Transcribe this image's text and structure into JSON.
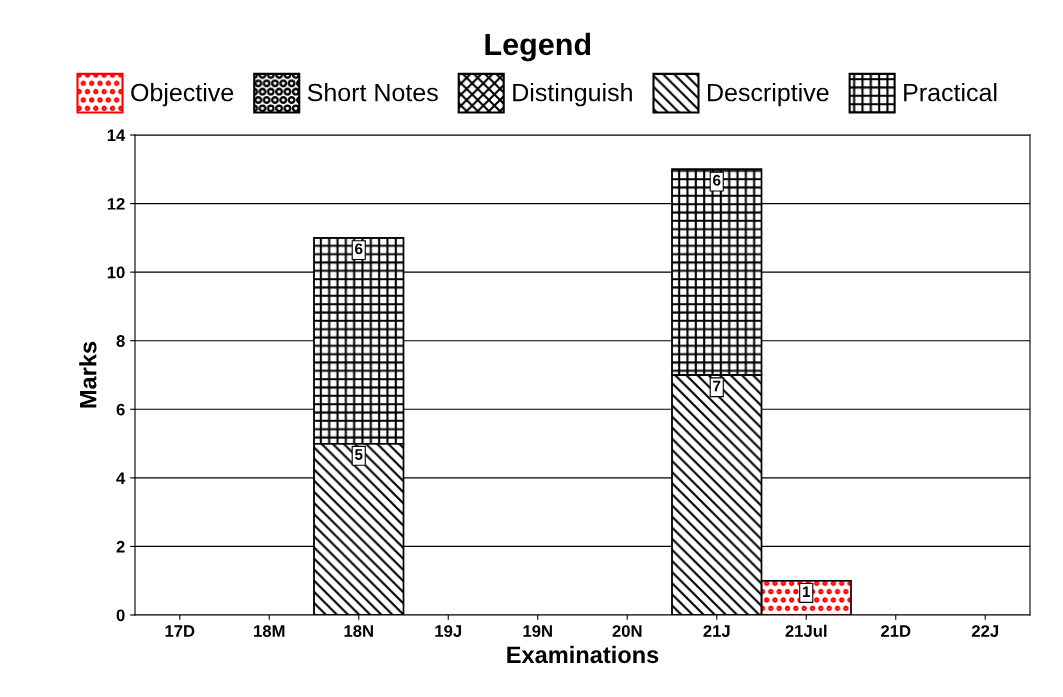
{
  "chart_data": {
    "type": "bar",
    "stacked": true,
    "xlabel": "Examinations",
    "ylabel": "Marks",
    "legend_title": "Legend",
    "legend": "top",
    "categories": [
      "17D",
      "18M",
      "18N",
      "19J",
      "19N",
      "20N",
      "21J",
      "21Jul",
      "21D",
      "22J"
    ],
    "series": [
      {
        "name": "Objective",
        "color": "#ff0000",
        "values": [
          null,
          null,
          null,
          null,
          null,
          null,
          null,
          1,
          null,
          null
        ]
      },
      {
        "name": "Short Notes",
        "color": "#000000",
        "values": [
          null,
          null,
          null,
          null,
          null,
          null,
          null,
          null,
          null,
          null
        ]
      },
      {
        "name": "Distinguish",
        "color": "#000000",
        "values": [
          null,
          null,
          null,
          null,
          null,
          null,
          null,
          null,
          null,
          null
        ]
      },
      {
        "name": "Descriptive",
        "color": "#000000",
        "values": [
          null,
          null,
          5,
          null,
          null,
          null,
          7,
          null,
          null,
          null
        ]
      },
      {
        "name": "Practical",
        "color": "#000000",
        "values": [
          null,
          null,
          6,
          null,
          null,
          null,
          6,
          null,
          null,
          null
        ]
      }
    ],
    "ylim": [
      0,
      14
    ],
    "yticks": [
      0,
      2,
      4,
      6,
      8,
      10,
      12,
      14
    ],
    "grid": "y",
    "data_labels": true
  }
}
